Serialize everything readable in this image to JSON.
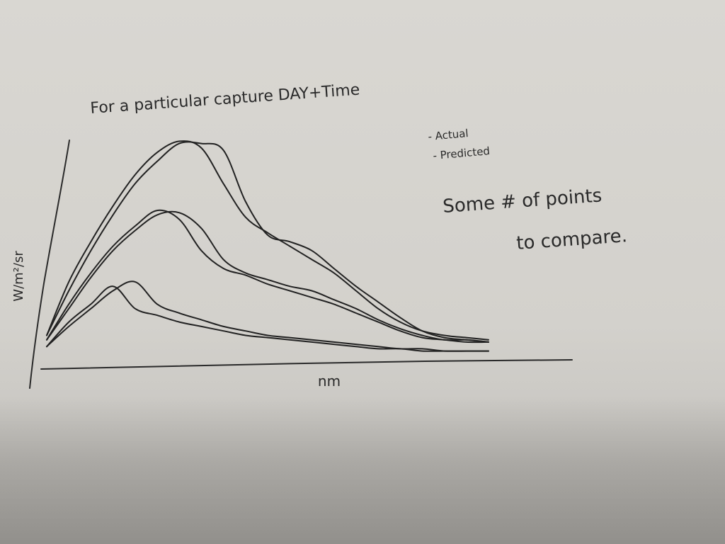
{
  "chart_data": {
    "type": "line",
    "title": "For a particular capture DAY+Time",
    "xlabel": "nm",
    "ylabel": "W/m²/sr",
    "legend": [
      "- Actual",
      "- Predicted"
    ],
    "legend_position": "top-right",
    "annotation": [
      "Some # of points",
      "to compare."
    ],
    "grid": false,
    "x": [
      0,
      5,
      10,
      15,
      20,
      25,
      30,
      35,
      40,
      45,
      50,
      55,
      60,
      65,
      70,
      75,
      80,
      85,
      90,
      95,
      100
    ],
    "xlim": [
      0,
      100
    ],
    "ylim": [
      0,
      100
    ],
    "series": [
      {
        "values": [
          10,
          30,
          48,
          64,
          78,
          88,
          96,
          96,
          93,
          70,
          55,
          52,
          48,
          40,
          32,
          25,
          18,
          12,
          9,
          8,
          7
        ]
      },
      {
        "values": [
          10,
          34,
          52,
          68,
          82,
          92,
          97,
          94,
          78,
          63,
          56,
          50,
          44,
          38,
          30,
          22,
          16,
          12,
          10,
          9,
          8
        ]
      },
      {
        "values": [
          8,
          22,
          36,
          48,
          57,
          64,
          65,
          58,
          44,
          38,
          35,
          32,
          30,
          26,
          22,
          17,
          13,
          10,
          8,
          8,
          7
        ]
      },
      {
        "values": [
          8,
          24,
          38,
          50,
          59,
          66,
          62,
          48,
          40,
          37,
          33,
          30,
          27,
          24,
          20,
          16,
          12,
          9,
          8,
          7,
          7
        ]
      },
      {
        "values": [
          5,
          14,
          22,
          30,
          34,
          24,
          20,
          17,
          14,
          12,
          10,
          9,
          8,
          7,
          6,
          5,
          4,
          4,
          3,
          3,
          3
        ]
      },
      {
        "values": [
          5,
          16,
          24,
          32,
          22,
          19,
          16,
          14,
          12,
          10,
          9,
          8,
          7,
          6,
          5,
          4,
          4,
          3,
          3,
          3,
          3
        ]
      }
    ]
  }
}
